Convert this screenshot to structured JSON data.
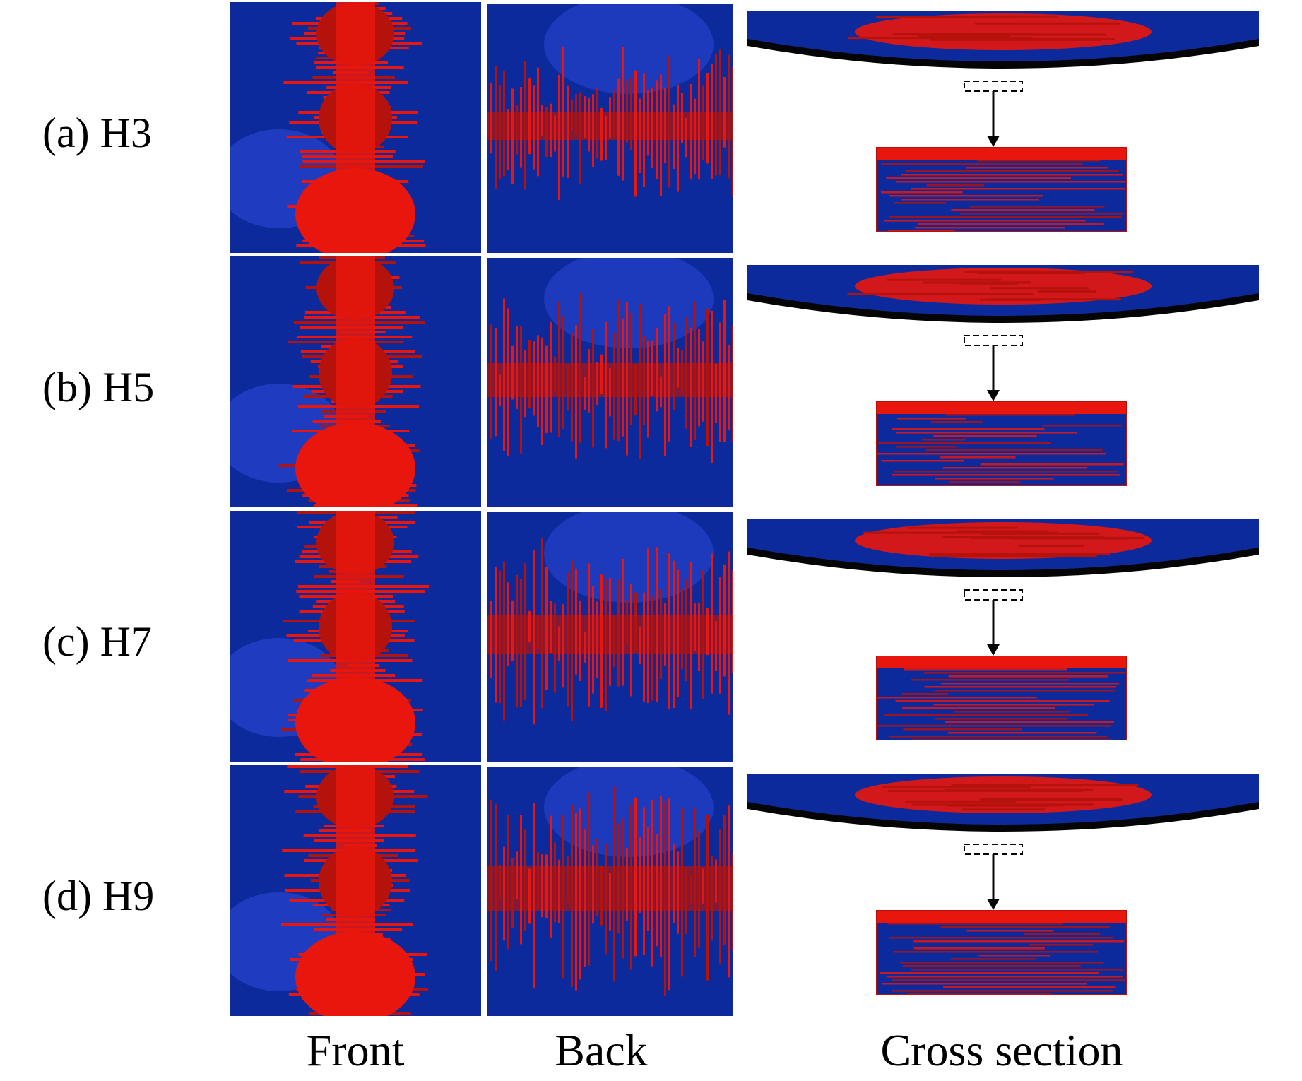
{
  "figure": {
    "rows": [
      {
        "label": "(a) H3"
      },
      {
        "label": "(b) H5"
      },
      {
        "label": "(c) H7"
      },
      {
        "label": "(d) H9"
      }
    ],
    "columns": {
      "front": "Front",
      "back": "Back",
      "cross": "Cross section"
    }
  },
  "colors": {
    "background": "#ffffff",
    "undamaged_blue": "#0d2a9c",
    "light_blue": "#2844d2",
    "damage_red": "#e8160c",
    "dark_red": "#b5120b",
    "black": "#050505"
  }
}
